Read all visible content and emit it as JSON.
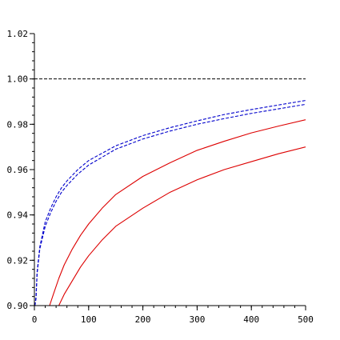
{
  "chart_data": {
    "type": "line",
    "title": "",
    "xlabel": "",
    "ylabel": "",
    "xlim": [
      0,
      500
    ],
    "ylim": [
      0.9,
      1.02
    ],
    "grid": false,
    "x_ticks": [
      0,
      100,
      200,
      300,
      400,
      500
    ],
    "x_tick_labels": [
      "0",
      "100",
      "200",
      "300",
      "400",
      "500"
    ],
    "y_ticks": [
      0.9,
      0.92,
      0.94,
      0.96,
      0.98,
      1.0,
      1.02
    ],
    "y_tick_labels": [
      "0.90",
      "0.92",
      "0.94",
      "0.96",
      "0.98",
      "1.00",
      "1.02"
    ],
    "reference_line": {
      "y": 1.0,
      "color": "#000000",
      "style": "dashed"
    },
    "series": [
      {
        "color": "#0000cc",
        "style": "dashed",
        "x": [
          1,
          3,
          5,
          10,
          20,
          30,
          40,
          50,
          60,
          80,
          100,
          150,
          200,
          250,
          300,
          350,
          400,
          450,
          500
        ],
        "y": [
          0.9,
          0.904,
          0.915,
          0.926,
          0.937,
          0.943,
          0.948,
          0.952,
          0.955,
          0.96,
          0.964,
          0.9705,
          0.975,
          0.9785,
          0.9815,
          0.9843,
          0.9865,
          0.9885,
          0.9905
        ]
      },
      {
        "color": "#0000cc",
        "style": "dashed",
        "x": [
          1,
          3,
          5,
          10,
          20,
          30,
          40,
          50,
          60,
          80,
          100,
          150,
          200,
          250,
          300,
          350,
          400,
          450,
          500
        ],
        "y": [
          0.9,
          0.903,
          0.914,
          0.925,
          0.935,
          0.941,
          0.946,
          0.95,
          0.953,
          0.958,
          0.962,
          0.969,
          0.9735,
          0.977,
          0.98,
          0.9825,
          0.9848,
          0.9868,
          0.9888
        ]
      },
      {
        "color": "#dd0000",
        "style": "solid",
        "x": [
          28,
          35,
          45,
          55,
          70,
          85,
          100,
          125,
          150,
          200,
          250,
          300,
          350,
          400,
          450,
          500
        ],
        "y": [
          0.9,
          0.905,
          0.912,
          0.918,
          0.925,
          0.931,
          0.936,
          0.943,
          0.949,
          0.957,
          0.963,
          0.9685,
          0.9725,
          0.9762,
          0.9792,
          0.982
        ]
      },
      {
        "color": "#dd0000",
        "style": "solid",
        "x": [
          45,
          55,
          70,
          85,
          100,
          125,
          150,
          200,
          250,
          300,
          350,
          400,
          450,
          500
        ],
        "y": [
          0.9,
          0.905,
          0.911,
          0.917,
          0.922,
          0.929,
          0.935,
          0.943,
          0.95,
          0.9555,
          0.96,
          0.9635,
          0.967,
          0.97
        ]
      }
    ]
  }
}
